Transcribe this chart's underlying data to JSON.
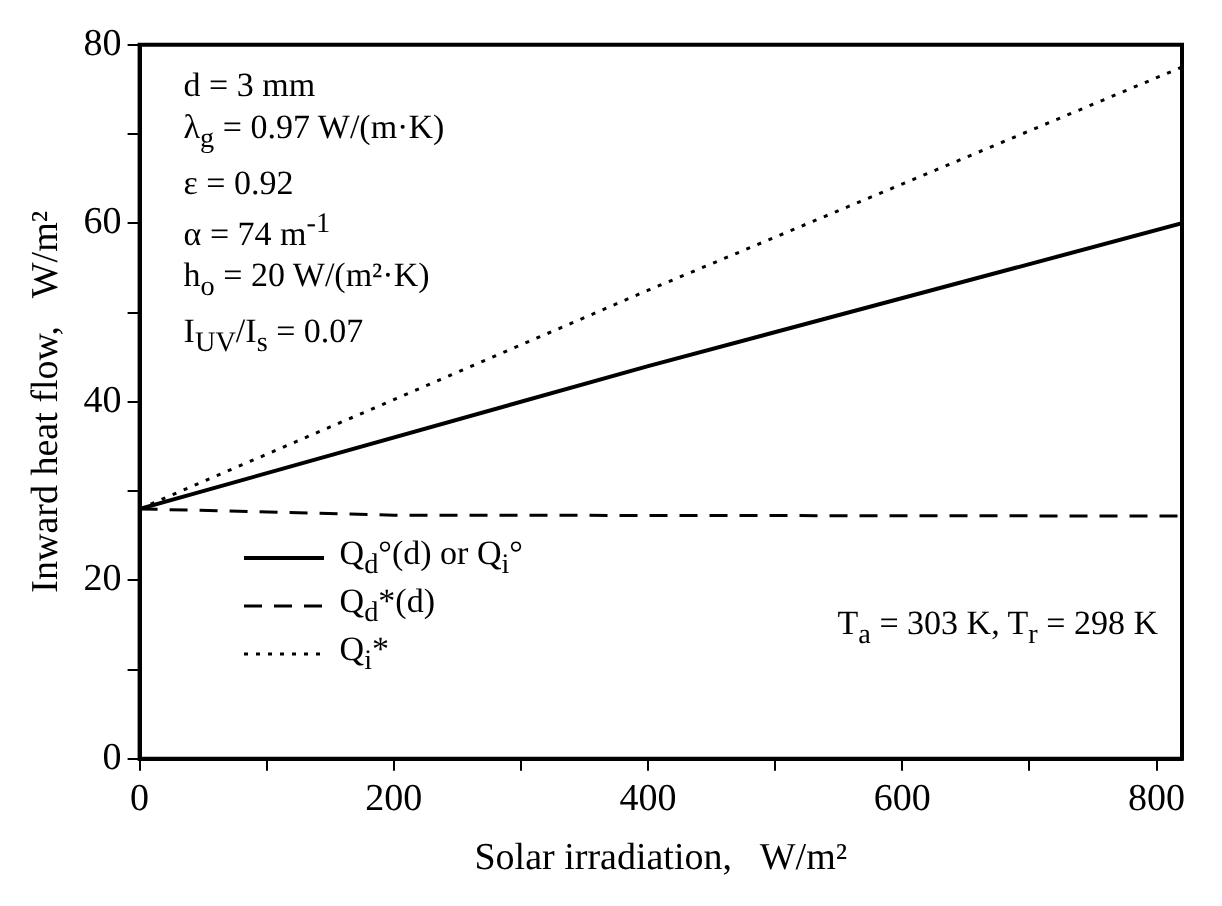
{
  "chart_data": {
    "type": "line",
    "xlabel": "Solar irradiation,   W/m²",
    "ylabel": "Inward heat flow,   W/m²",
    "xlim": [
      0,
      820
    ],
    "ylim": [
      0,
      80
    ],
    "xticks": [
      0,
      {
        "value": 100,
        "label": null
      },
      200,
      {
        "value": 300,
        "label": null
      },
      400,
      {
        "value": 500,
        "label": null
      },
      600,
      {
        "value": 700,
        "label": null
      },
      800
    ],
    "yticks": [
      0,
      {
        "value": 10,
        "label": null
      },
      20,
      {
        "value": 30,
        "label": null
      },
      40,
      {
        "value": 50,
        "label": null
      },
      60,
      {
        "value": 70,
        "label": null
      },
      80
    ],
    "grid": false,
    "legend": "bottom left",
    "marker": "none",
    "series": [
      {
        "name": "Q$_{d}$°(d) or  Q$_{i}$°",
        "color": "#000000",
        "line_style": "solid",
        "x": [
          0,
          400,
          820
        ],
        "values": [
          28,
          44,
          60
        ]
      },
      {
        "name": "Q$_{d}$*(d)",
        "color": "#000000",
        "line_style": "dashed",
        "x": [
          0,
          200,
          820
        ],
        "values": [
          28,
          27.3,
          27.2
        ]
      },
      {
        "name": "Q$_{i}$*",
        "color": "#000000",
        "line_style": "dotted",
        "x": [
          0,
          400,
          820
        ],
        "values": [
          28,
          52.5,
          77.5
        ]
      }
    ],
    "annotations": [
      "d = 3 mm",
      "λ$_{g}$ = 0.97 W/(m·K)",
      "ε = 0.92",
      "α = 74 m$^{-1}$",
      "h$_{o}$ = 20 W/(m²·K)",
      "I$_{UV}$/I$_{s}$ = 0.07",
      "T$_{a}$ = 303 K, T$_{r}$ = 298 K"
    ]
  }
}
